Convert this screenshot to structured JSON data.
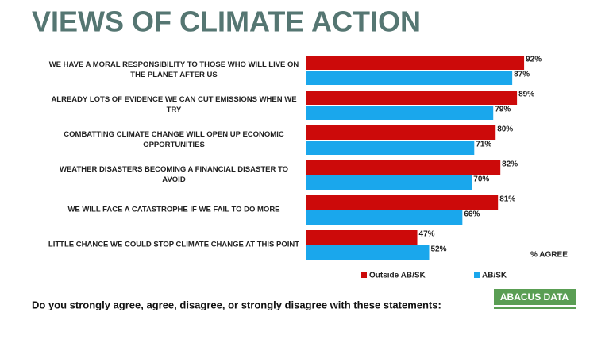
{
  "chart_data": {
    "type": "hbar",
    "title": "VIEWS OF CLIMATE ACTION",
    "categories": [
      "WE HAVE A MORAL RESPONSIBILITY TO THOSE WHO WILL LIVE ON THE PLANET AFTER US",
      "ALREADY LOTS OF EVIDENCE WE CAN CUT EMISSIONS WHEN WE TRY",
      "COMBATTING CLIMATE CHANGE WILL OPEN UP ECONOMIC OPPORTUNITIES",
      "WEATHER DISASTERS BECOMING A FINANCIAL DISASTER TO AVOID",
      "WE WILL FACE A CATASTROPHE IF WE FAIL TO DO MORE",
      "LITTLE CHANCE WE COULD STOP CLIMATE CHANGE AT THIS POINT"
    ],
    "series": [
      {
        "name": "Outside AB/SK",
        "color": "#cc0a0a",
        "values": [
          92,
          89,
          80,
          82,
          81,
          47
        ],
        "value_labels": [
          "92%",
          "89%",
          "80%",
          "82%",
          "81%",
          "47%"
        ]
      },
      {
        "name": "AB/SK",
        "color": "#1aa7ec",
        "values": [
          87,
          79,
          71,
          70,
          66,
          52
        ],
        "value_labels": [
          "87%",
          "79%",
          "71%",
          "70%",
          "66%",
          "52%"
        ]
      }
    ],
    "xlim": [
      0,
      100
    ],
    "annotation": "% AGREE",
    "footnote": "Do you strongly agree, agree, disagree, or strongly disagree with these statements:",
    "logo": "ABACUS DATA"
  }
}
